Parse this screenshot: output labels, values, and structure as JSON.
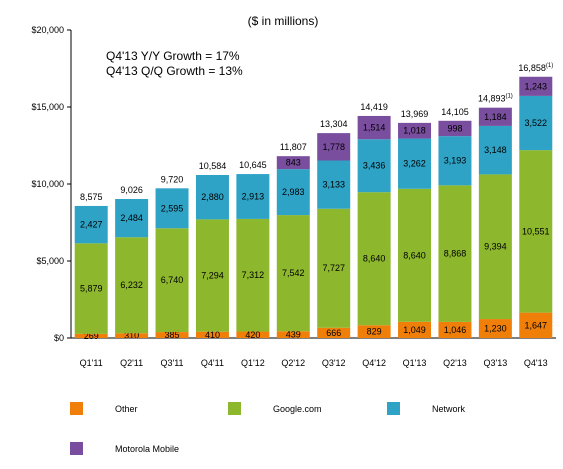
{
  "chart_data": {
    "type": "bar",
    "stacked": true,
    "title": "($ in millions)",
    "annotations": [
      "Q4'13 Y/Y Growth = 17%",
      "Q4'13 Q/Q Growth = 13%"
    ],
    "categories": [
      "Q1'11",
      "Q2'11",
      "Q3'11",
      "Q4'11",
      "Q1'12",
      "Q2'12",
      "Q3'12",
      "Q4'12",
      "Q1'13",
      "Q2'13",
      "Q3'13",
      "Q4'13"
    ],
    "series": [
      {
        "name": "Other",
        "color": "#f07f09",
        "values": [
          269,
          310,
          385,
          410,
          420,
          439,
          666,
          829,
          1049,
          1046,
          1230,
          1647
        ]
      },
      {
        "name": "Google.com",
        "color": "#8db72c",
        "values": [
          5879,
          6232,
          6740,
          7294,
          7312,
          7542,
          7727,
          8640,
          8640,
          8868,
          9394,
          10551
        ]
      },
      {
        "name": "Network",
        "color": "#2ea3c6",
        "values": [
          2427,
          2484,
          2595,
          2880,
          2913,
          2983,
          3133,
          3436,
          3262,
          3193,
          3148,
          3522
        ]
      },
      {
        "name": "Motorola Mobile",
        "color": "#7a4e9e",
        "values": [
          null,
          null,
          null,
          null,
          null,
          843,
          1778,
          1514,
          1018,
          998,
          1184,
          1243
        ]
      }
    ],
    "totals": [
      "8,575",
      "9,026",
      "9,720",
      "10,584",
      "10,645",
      "11,807",
      "13,304",
      "14,419",
      "13,969",
      "14,105",
      "14,893",
      "16,858"
    ],
    "total_footnotes": [
      "",
      "",
      "",
      "",
      "",
      "",
      "",
      "",
      "",
      "",
      "(1)",
      "(1)"
    ],
    "ylim": [
      0,
      20000
    ],
    "yticks": [
      0,
      5000,
      10000,
      15000,
      20000
    ],
    "ytick_labels": [
      "$0",
      "$5,000",
      "$10,000",
      "$15,000",
      "$20,000"
    ],
    "grid": false,
    "legend_position": "bottom"
  },
  "legend": {
    "items": [
      {
        "label": "Other",
        "color": "#f07f09"
      },
      {
        "label": "Google.com",
        "color": "#8db72c"
      },
      {
        "label": "Network",
        "color": "#2ea3c6"
      },
      {
        "label": "Motorola Mobile",
        "color": "#7a4e9e"
      }
    ]
  }
}
